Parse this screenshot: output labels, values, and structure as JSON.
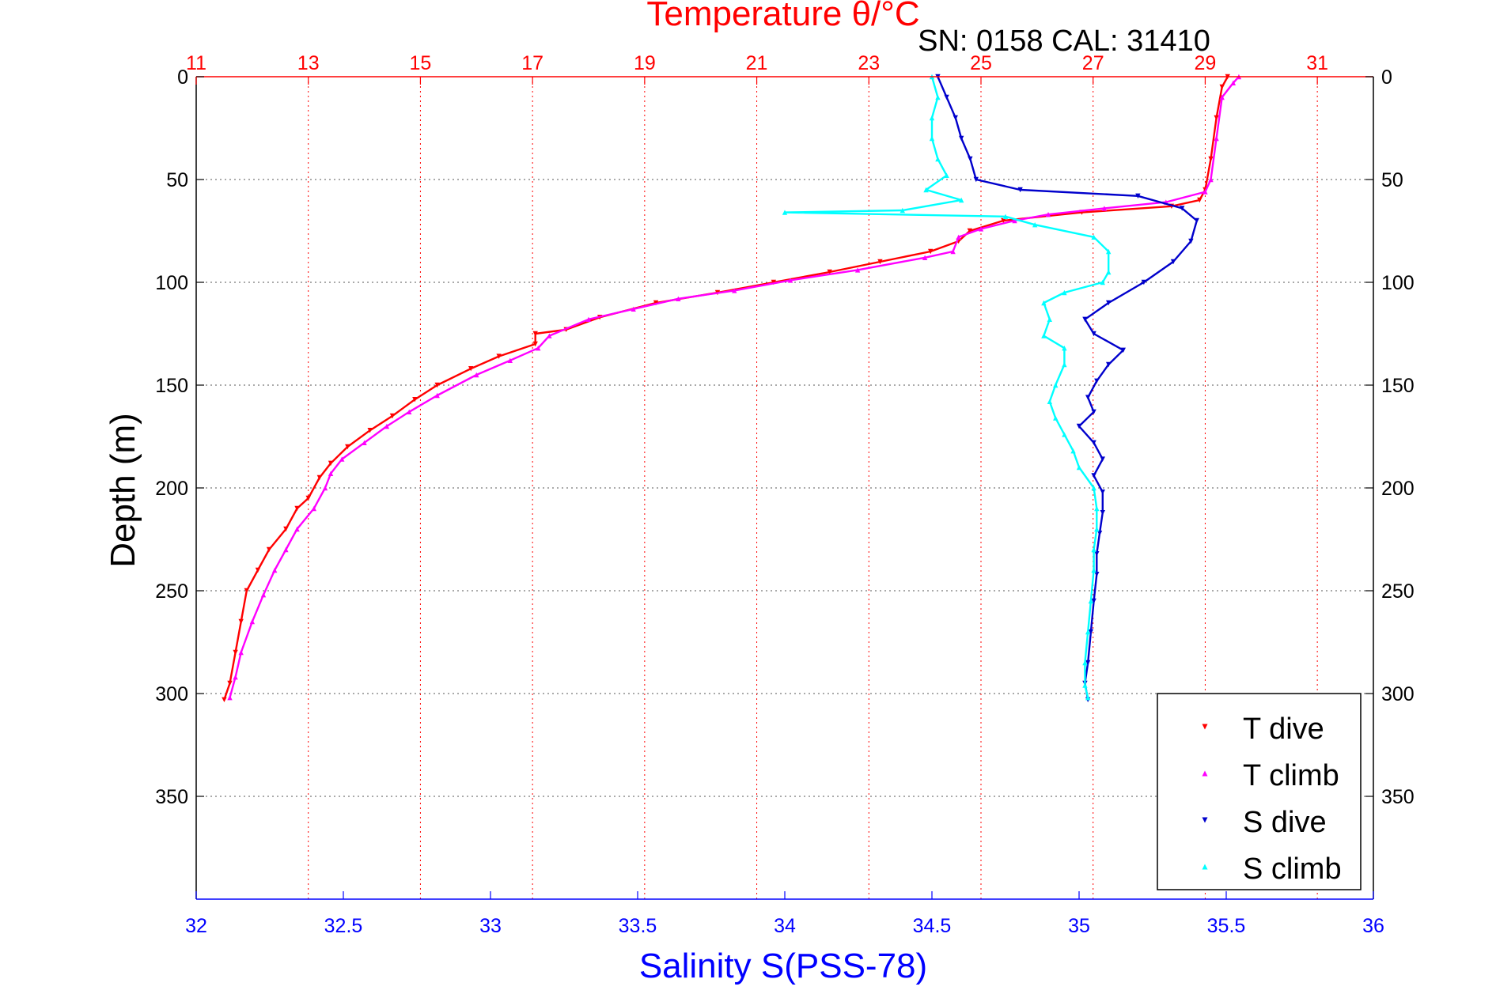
{
  "chart_data": {
    "type": "scatter",
    "title": "Temperature θ/°C",
    "subtitle": "SN: 0158  CAL: 31410",
    "ylabel": "Depth (m)",
    "xlabel": "Salinity S(PSS-78)",
    "y_axis": {
      "range": [
        0,
        400
      ],
      "inverted": true,
      "ticks": [
        0,
        50,
        100,
        150,
        200,
        250,
        300,
        350
      ],
      "tick_labels": [
        "0",
        "50",
        "100",
        "150",
        "200",
        "250",
        "300",
        "350"
      ]
    },
    "x_bottom": {
      "name": "salinity",
      "range": [
        32,
        36
      ],
      "ticks": [
        32,
        32.5,
        33,
        33.5,
        34,
        34.5,
        35,
        35.5,
        36
      ],
      "tick_labels": [
        "32",
        "32.5",
        "33",
        "33.5",
        "34",
        "34.5",
        "35",
        "35.5",
        "36"
      ],
      "color": "#0000ff"
    },
    "x_top": {
      "name": "temperature",
      "range": [
        11,
        32
      ],
      "ticks": [
        11,
        13,
        15,
        17,
        19,
        21,
        23,
        25,
        27,
        29,
        31
      ],
      "tick_labels": [
        "11",
        "13",
        "15",
        "17",
        "19",
        "21",
        "23",
        "25",
        "27",
        "29",
        "31"
      ],
      "color": "#ff0000",
      "grid": true
    },
    "grid": true,
    "legend_position": "bottom-right",
    "series": [
      {
        "name": "T dive",
        "axis": "temperature",
        "color": "#ff0000",
        "marker": "triangle-down",
        "points": [
          [
            29.4,
            0
          ],
          [
            29.3,
            5
          ],
          [
            29.2,
            20
          ],
          [
            29.1,
            40
          ],
          [
            29.0,
            55
          ],
          [
            28.9,
            60
          ],
          [
            28.4,
            63
          ],
          [
            26.8,
            66
          ],
          [
            25.4,
            70
          ],
          [
            24.8,
            75
          ],
          [
            24.6,
            80
          ],
          [
            24.1,
            85
          ],
          [
            23.2,
            90
          ],
          [
            22.3,
            95
          ],
          [
            21.3,
            100
          ],
          [
            20.3,
            105
          ],
          [
            19.2,
            110
          ],
          [
            18.2,
            117
          ],
          [
            17.6,
            123
          ],
          [
            17.05,
            125
          ],
          [
            17.05,
            130
          ],
          [
            16.4,
            136
          ],
          [
            15.9,
            142
          ],
          [
            15.3,
            150
          ],
          [
            14.9,
            157
          ],
          [
            14.5,
            165
          ],
          [
            14.1,
            172
          ],
          [
            13.7,
            180
          ],
          [
            13.4,
            188
          ],
          [
            13.2,
            195
          ],
          [
            13.0,
            205
          ],
          [
            12.8,
            210
          ],
          [
            12.6,
            220
          ],
          [
            12.3,
            230
          ],
          [
            12.1,
            240
          ],
          [
            11.9,
            250
          ],
          [
            11.8,
            265
          ],
          [
            11.7,
            280
          ],
          [
            11.6,
            295
          ],
          [
            11.5,
            303
          ]
        ]
      },
      {
        "name": "T climb",
        "axis": "temperature",
        "color": "#ff00ff",
        "marker": "triangle-up",
        "points": [
          [
            29.6,
            0
          ],
          [
            29.5,
            3
          ],
          [
            29.3,
            10
          ],
          [
            29.2,
            30
          ],
          [
            29.1,
            50
          ],
          [
            29.0,
            56
          ],
          [
            28.3,
            61
          ],
          [
            27.2,
            64
          ],
          [
            26.2,
            67
          ],
          [
            25.6,
            70
          ],
          [
            25.0,
            74
          ],
          [
            24.6,
            78
          ],
          [
            24.5,
            85
          ],
          [
            24.0,
            88
          ],
          [
            22.8,
            94
          ],
          [
            21.6,
            99
          ],
          [
            20.6,
            104
          ],
          [
            19.6,
            108
          ],
          [
            18.8,
            113
          ],
          [
            18.0,
            118
          ],
          [
            17.3,
            126
          ],
          [
            17.1,
            132
          ],
          [
            16.6,
            138
          ],
          [
            16.0,
            145
          ],
          [
            15.3,
            155
          ],
          [
            14.8,
            163
          ],
          [
            14.4,
            170
          ],
          [
            14.0,
            178
          ],
          [
            13.6,
            186
          ],
          [
            13.4,
            193
          ],
          [
            13.3,
            200
          ],
          [
            13.1,
            210
          ],
          [
            12.8,
            220
          ],
          [
            12.6,
            230
          ],
          [
            12.4,
            240
          ],
          [
            12.2,
            252
          ],
          [
            12.0,
            265
          ],
          [
            11.8,
            280
          ],
          [
            11.7,
            292
          ],
          [
            11.6,
            302
          ]
        ]
      },
      {
        "name": "S dive",
        "axis": "salinity",
        "color": "#0000cc",
        "marker": "triangle-down",
        "points": [
          [
            34.52,
            0
          ],
          [
            34.55,
            10
          ],
          [
            34.58,
            20
          ],
          [
            34.6,
            30
          ],
          [
            34.63,
            40
          ],
          [
            34.65,
            50
          ],
          [
            34.8,
            55
          ],
          [
            35.2,
            58
          ],
          [
            35.35,
            64
          ],
          [
            35.4,
            70
          ],
          [
            35.38,
            80
          ],
          [
            35.32,
            90
          ],
          [
            35.22,
            100
          ],
          [
            35.1,
            110
          ],
          [
            35.02,
            118
          ],
          [
            35.05,
            125
          ],
          [
            35.15,
            133
          ],
          [
            35.1,
            140
          ],
          [
            35.06,
            148
          ],
          [
            35.03,
            156
          ],
          [
            35.05,
            163
          ],
          [
            35.0,
            170
          ],
          [
            35.05,
            178
          ],
          [
            35.08,
            186
          ],
          [
            35.05,
            194
          ],
          [
            35.08,
            202
          ],
          [
            35.08,
            212
          ],
          [
            35.07,
            222
          ],
          [
            35.06,
            232
          ],
          [
            35.06,
            242
          ],
          [
            35.05,
            255
          ],
          [
            35.04,
            270
          ],
          [
            35.03,
            285
          ],
          [
            35.02,
            295
          ],
          [
            35.03,
            303
          ]
        ]
      },
      {
        "name": "S climb",
        "axis": "salinity",
        "color": "#00ffff",
        "marker": "triangle-up",
        "points": [
          [
            34.5,
            0
          ],
          [
            34.52,
            10
          ],
          [
            34.5,
            20
          ],
          [
            34.5,
            30
          ],
          [
            34.52,
            40
          ],
          [
            34.55,
            48
          ],
          [
            34.48,
            55
          ],
          [
            34.6,
            60
          ],
          [
            34.4,
            65
          ],
          [
            34.0,
            66
          ],
          [
            34.75,
            68
          ],
          [
            34.85,
            72
          ],
          [
            35.05,
            78
          ],
          [
            35.1,
            85
          ],
          [
            35.1,
            95
          ],
          [
            35.08,
            100
          ],
          [
            34.95,
            105
          ],
          [
            34.88,
            110
          ],
          [
            34.9,
            118
          ],
          [
            34.88,
            126
          ],
          [
            34.95,
            132
          ],
          [
            34.95,
            140
          ],
          [
            34.92,
            150
          ],
          [
            34.9,
            158
          ],
          [
            34.92,
            166
          ],
          [
            34.95,
            174
          ],
          [
            34.98,
            182
          ],
          [
            35.0,
            190
          ],
          [
            35.05,
            200
          ],
          [
            35.06,
            210
          ],
          [
            35.06,
            220
          ],
          [
            35.05,
            230
          ],
          [
            35.05,
            240
          ],
          [
            35.04,
            255
          ],
          [
            35.03,
            270
          ],
          [
            35.02,
            285
          ],
          [
            35.02,
            296
          ],
          [
            35.03,
            302
          ]
        ]
      }
    ]
  }
}
